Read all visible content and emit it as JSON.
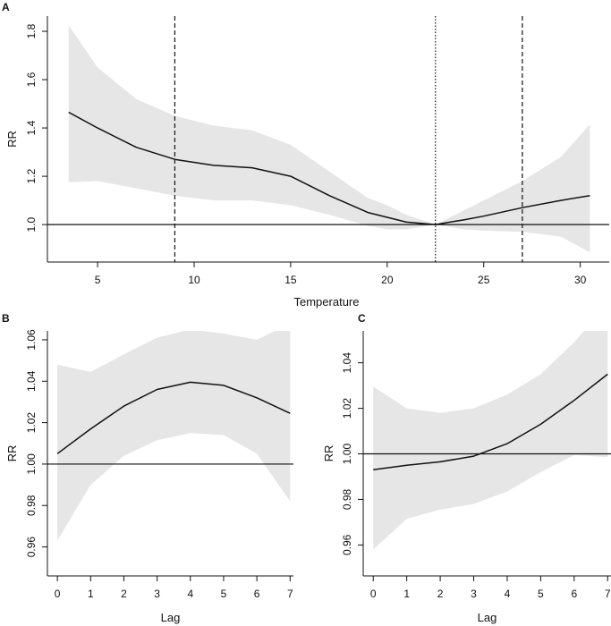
{
  "colors": {
    "band": "#e6e6e6",
    "line": "#111111"
  },
  "chart_data": [
    {
      "panel_label": "A",
      "type": "line",
      "xlabel": "Temperature",
      "ylabel": "RR",
      "xlim": [
        2.4,
        31.5
      ],
      "ylim": [
        0.845,
        1.863
      ],
      "xticks": [
        5,
        10,
        15,
        20,
        25,
        30
      ],
      "yticks": [
        1.0,
        1.2,
        1.4,
        1.6,
        1.8
      ],
      "ytick_labels": [
        "1.0",
        "1.2",
        "1.4",
        "1.6",
        "1.8"
      ],
      "reference_line": 1.0,
      "vlines": [
        {
          "x": 9,
          "style": "dashed"
        },
        {
          "x": 22.5,
          "style": "dotted"
        },
        {
          "x": 27,
          "style": "dashed"
        }
      ],
      "x": [
        3.5,
        5,
        7,
        9,
        11,
        13,
        15,
        17,
        19,
        20,
        21,
        22.5,
        24,
        25,
        27,
        29,
        30.5
      ],
      "estimate": [
        1.465,
        1.4,
        1.32,
        1.27,
        1.245,
        1.235,
        1.2,
        1.12,
        1.05,
        1.03,
        1.01,
        1.0,
        1.02,
        1.035,
        1.07,
        1.1,
        1.12
      ],
      "lower": [
        1.175,
        1.18,
        1.15,
        1.12,
        1.1,
        1.1,
        1.08,
        1.04,
        0.995,
        0.98,
        0.98,
        1.0,
        0.98,
        0.975,
        0.97,
        0.95,
        0.885
      ],
      "upper": [
        1.825,
        1.65,
        1.52,
        1.45,
        1.41,
        1.39,
        1.33,
        1.22,
        1.11,
        1.08,
        1.04,
        1.0,
        1.06,
        1.1,
        1.18,
        1.28,
        1.415
      ]
    },
    {
      "panel_label": "B",
      "type": "line",
      "xlabel": "Lag",
      "ylabel": "RR",
      "xlim": [
        -0.3,
        7.1
      ],
      "ylim": [
        0.946,
        1.0643
      ],
      "xticks": [
        0,
        1,
        2,
        3,
        4,
        5,
        6,
        7
      ],
      "yticks": [
        0.96,
        0.98,
        1.0,
        1.02,
        1.04,
        1.06
      ],
      "ytick_labels": [
        "0.96",
        "0.98",
        "1.00",
        "1.02",
        "1.04",
        "1.06"
      ],
      "reference_line": 1.0,
      "x": [
        0,
        1,
        2,
        3,
        4,
        5,
        6,
        7
      ],
      "estimate": [
        1.005,
        1.017,
        1.028,
        1.036,
        1.0395,
        1.038,
        1.032,
        1.0245
      ],
      "lower": [
        0.963,
        0.99,
        1.004,
        1.0115,
        1.015,
        1.014,
        1.005,
        0.982
      ],
      "upper": [
        1.048,
        1.0445,
        1.053,
        1.061,
        1.065,
        1.063,
        1.06,
        1.068
      ]
    },
    {
      "panel_label": "C",
      "type": "line",
      "xlabel": "Lag",
      "ylabel": "RR",
      "xlim": [
        -0.3,
        7.1
      ],
      "ylim": [
        0.9464,
        1.054
      ],
      "xticks": [
        0,
        1,
        2,
        3,
        4,
        5,
        6,
        7
      ],
      "yticks": [
        0.96,
        0.98,
        1.0,
        1.02,
        1.04
      ],
      "ytick_labels": [
        "0.96",
        "0.98",
        "1.00",
        "1.02",
        "1.04"
      ],
      "reference_line": 1.0,
      "x": [
        0,
        1,
        2,
        3,
        4,
        5,
        6,
        7
      ],
      "estimate": [
        0.993,
        0.995,
        0.9965,
        0.999,
        1.0045,
        1.013,
        1.0235,
        1.035
      ],
      "lower": [
        0.958,
        0.9715,
        0.9755,
        0.978,
        0.9835,
        0.992,
        0.9995,
        0.9985
      ],
      "upper": [
        1.0295,
        1.02,
        1.018,
        1.02,
        1.026,
        1.035,
        1.049,
        1.066
      ]
    }
  ]
}
